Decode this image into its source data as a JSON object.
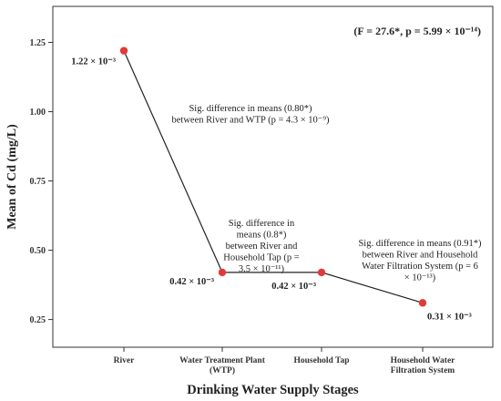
{
  "chart_data": {
    "type": "line",
    "title": "",
    "stat_text": "(F = 27.6*, p = 5.99 × 10⁻¹⁴)",
    "xlabel": "Drinking Water Supply Stages",
    "ylabel": "Mean of Cd (mg/L)",
    "ylim": [
      0.15,
      1.38
    ],
    "yticks": [
      0.25,
      0.5,
      0.75,
      1.0,
      1.25
    ],
    "ytick_labels": [
      "0.25",
      "0.50",
      "0.75",
      "1.00",
      "1.25"
    ],
    "categories": [
      [
        "River"
      ],
      [
        "Water Treatment Plant",
        "(WTP)"
      ],
      [
        "Household Tap"
      ],
      [
        "Household Water",
        "Filtration System"
      ]
    ],
    "series": [
      {
        "values": [
          1.22,
          0.42,
          0.42,
          0.31
        ]
      }
    ],
    "point_labels": [
      "1.22 × 10⁻³",
      "0.42 × 10⁻³",
      "0.42 × 10⁻³",
      "0.31 × 10⁻³"
    ],
    "annotations": [
      [
        "Sig. difference in means (0.80*)",
        "between River and WTP (p = 4.3 × 10⁻⁹)"
      ],
      [
        "Sig. difference in",
        "means (0.8*)",
        "between River and",
        "Household Tap (p =",
        "3.5 × 10⁻¹¹)"
      ],
      [
        "Sig. difference in means (0.91*)",
        "between River and Household",
        "Water Filtration System (p = 6",
        "× 10⁻¹³)"
      ]
    ],
    "colors": {
      "line": "#222222",
      "marker": "#e03a3a",
      "frame": "#333333"
    },
    "grid": false,
    "legend": "none"
  }
}
